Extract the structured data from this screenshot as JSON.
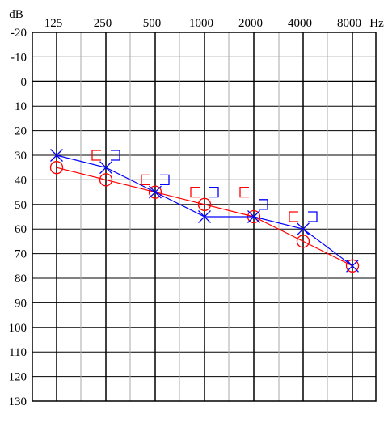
{
  "chart_data": {
    "type": "line",
    "title": "",
    "xlabel": "Hz",
    "ylabel": "dB",
    "x": [
      "125",
      "250",
      "500",
      "1000",
      "2000",
      "4000",
      "8000"
    ],
    "ylim": [
      -20,
      130
    ],
    "y_inverted": true,
    "y_ticks": [
      "-20",
      "-10",
      "0",
      "10",
      "20",
      "30",
      "40",
      "50",
      "60",
      "70",
      "80",
      "90",
      "100",
      "110",
      "120",
      "130"
    ],
    "reference_line_db": 0,
    "grid": true,
    "series": [
      {
        "marker": "circle",
        "color": "#ff0000",
        "values": [
          35,
          40,
          45,
          50,
          55,
          65,
          75
        ]
      },
      {
        "marker": "cross",
        "color": "#0000ff",
        "values": [
          30,
          35,
          45,
          55,
          55,
          60,
          75
        ]
      },
      {
        "marker": "bracket-left",
        "color": "#ff0000",
        "x": [
          "250",
          "500",
          "1000",
          "2000",
          "4000"
        ],
        "values": [
          30,
          40,
          45,
          45,
          55
        ]
      },
      {
        "marker": "bracket-right",
        "color": "#0000ff",
        "x": [
          "250",
          "500",
          "1000",
          "2000",
          "4000"
        ],
        "values": [
          30,
          40,
          45,
          50,
          55
        ]
      }
    ]
  }
}
